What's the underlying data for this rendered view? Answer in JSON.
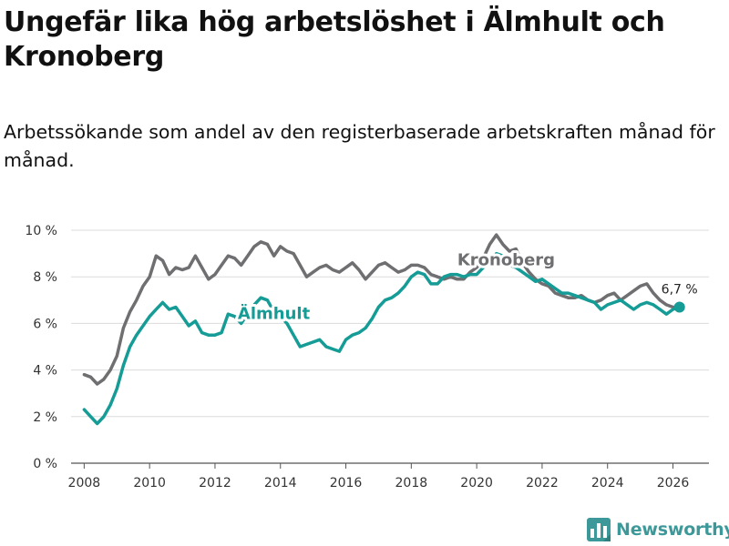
{
  "header": {
    "title": "Ungefär lika hög arbetslöshet i Älmhult och Kronoberg",
    "subtitle": "Arbetssökande som andel av den registerbaserade arbetskraften månad för månad."
  },
  "footer": {
    "brand": "Newsworthy",
    "brand_icon": "bar-chart-logo-icon"
  },
  "chart_data": {
    "type": "line",
    "title": "Ungefär lika hög arbetslöshet i Älmhult och Kronoberg",
    "subtitle": "Arbetssökande som andel av den registerbaserade arbetskraften månad för månad.",
    "xlabel": "",
    "ylabel": "",
    "xlim": [
      2007.6,
      2027.1
    ],
    "ylim": [
      0,
      10
    ],
    "x_ticks": [
      2008,
      2010,
      2012,
      2014,
      2016,
      2018,
      2020,
      2022,
      2024,
      2026
    ],
    "x_tick_labels": [
      "2008",
      "2010",
      "2012",
      "2014",
      "2016",
      "2018",
      "2020",
      "2022",
      "2024",
      "2026"
    ],
    "y_ticks": [
      0,
      2,
      4,
      6,
      8,
      10
    ],
    "y_tick_labels": [
      "0 %",
      "2 %",
      "4 %",
      "6 %",
      "8 %",
      "10 %"
    ],
    "grid": "horizontal",
    "legend": "inline labels",
    "series": [
      {
        "name": "Kronoberg",
        "color": "#6f6f72",
        "points": [
          [
            2008.0,
            3.8
          ],
          [
            2008.2,
            3.7
          ],
          [
            2008.4,
            3.4
          ],
          [
            2008.6,
            3.6
          ],
          [
            2008.8,
            4.0
          ],
          [
            2009.0,
            4.6
          ],
          [
            2009.2,
            5.8
          ],
          [
            2009.4,
            6.5
          ],
          [
            2009.6,
            7.0
          ],
          [
            2009.8,
            7.6
          ],
          [
            2010.0,
            8.0
          ],
          [
            2010.2,
            8.9
          ],
          [
            2010.4,
            8.7
          ],
          [
            2010.6,
            8.1
          ],
          [
            2010.8,
            8.4
          ],
          [
            2011.0,
            8.3
          ],
          [
            2011.2,
            8.4
          ],
          [
            2011.4,
            8.9
          ],
          [
            2011.6,
            8.4
          ],
          [
            2011.8,
            7.9
          ],
          [
            2012.0,
            8.1
          ],
          [
            2012.2,
            8.5
          ],
          [
            2012.4,
            8.9
          ],
          [
            2012.6,
            8.8
          ],
          [
            2012.8,
            8.5
          ],
          [
            2013.0,
            8.9
          ],
          [
            2013.2,
            9.3
          ],
          [
            2013.4,
            9.5
          ],
          [
            2013.6,
            9.4
          ],
          [
            2013.8,
            8.9
          ],
          [
            2014.0,
            9.3
          ],
          [
            2014.2,
            9.1
          ],
          [
            2014.4,
            9.0
          ],
          [
            2014.6,
            8.5
          ],
          [
            2014.8,
            8.0
          ],
          [
            2015.0,
            8.2
          ],
          [
            2015.2,
            8.4
          ],
          [
            2015.4,
            8.5
          ],
          [
            2015.6,
            8.3
          ],
          [
            2015.8,
            8.2
          ],
          [
            2016.0,
            8.4
          ],
          [
            2016.2,
            8.6
          ],
          [
            2016.4,
            8.3
          ],
          [
            2016.6,
            7.9
          ],
          [
            2016.8,
            8.2
          ],
          [
            2017.0,
            8.5
          ],
          [
            2017.2,
            8.6
          ],
          [
            2017.4,
            8.4
          ],
          [
            2017.6,
            8.2
          ],
          [
            2017.8,
            8.3
          ],
          [
            2018.0,
            8.5
          ],
          [
            2018.2,
            8.5
          ],
          [
            2018.4,
            8.4
          ],
          [
            2018.6,
            8.1
          ],
          [
            2018.8,
            8.0
          ],
          [
            2019.0,
            7.9
          ],
          [
            2019.2,
            8.0
          ],
          [
            2019.4,
            7.9
          ],
          [
            2019.6,
            7.9
          ],
          [
            2019.8,
            8.2
          ],
          [
            2020.0,
            8.4
          ],
          [
            2020.2,
            8.8
          ],
          [
            2020.4,
            9.4
          ],
          [
            2020.6,
            9.8
          ],
          [
            2020.8,
            9.4
          ],
          [
            2021.0,
            9.1
          ],
          [
            2021.2,
            9.2
          ],
          [
            2021.4,
            8.6
          ],
          [
            2021.6,
            8.2
          ],
          [
            2021.8,
            7.9
          ],
          [
            2022.0,
            7.7
          ],
          [
            2022.2,
            7.6
          ],
          [
            2022.4,
            7.3
          ],
          [
            2022.6,
            7.2
          ],
          [
            2022.8,
            7.1
          ],
          [
            2023.0,
            7.1
          ],
          [
            2023.2,
            7.2
          ],
          [
            2023.4,
            7.0
          ],
          [
            2023.6,
            6.9
          ],
          [
            2023.8,
            7.0
          ],
          [
            2024.0,
            7.2
          ],
          [
            2024.2,
            7.3
          ],
          [
            2024.4,
            7.0
          ],
          [
            2024.6,
            7.2
          ],
          [
            2024.8,
            7.4
          ],
          [
            2025.0,
            7.6
          ],
          [
            2025.2,
            7.7
          ],
          [
            2025.4,
            7.3
          ],
          [
            2025.6,
            7.0
          ],
          [
            2025.8,
            6.8
          ],
          [
            2026.0,
            6.7
          ],
          [
            2026.2,
            6.7
          ]
        ]
      },
      {
        "name": "Älmhult",
        "color": "#159c96",
        "points": [
          [
            2008.0,
            2.3
          ],
          [
            2008.2,
            2.0
          ],
          [
            2008.4,
            1.7
          ],
          [
            2008.6,
            2.0
          ],
          [
            2008.8,
            2.5
          ],
          [
            2009.0,
            3.2
          ],
          [
            2009.2,
            4.2
          ],
          [
            2009.4,
            5.0
          ],
          [
            2009.6,
            5.5
          ],
          [
            2009.8,
            5.9
          ],
          [
            2010.0,
            6.3
          ],
          [
            2010.2,
            6.6
          ],
          [
            2010.4,
            6.9
          ],
          [
            2010.6,
            6.6
          ],
          [
            2010.8,
            6.7
          ],
          [
            2011.0,
            6.3
          ],
          [
            2011.2,
            5.9
          ],
          [
            2011.4,
            6.1
          ],
          [
            2011.6,
            5.6
          ],
          [
            2011.8,
            5.5
          ],
          [
            2012.0,
            5.5
          ],
          [
            2012.2,
            5.6
          ],
          [
            2012.4,
            6.4
          ],
          [
            2012.6,
            6.3
          ],
          [
            2012.8,
            6.0
          ],
          [
            2013.0,
            6.4
          ],
          [
            2013.2,
            6.8
          ],
          [
            2013.4,
            7.1
          ],
          [
            2013.6,
            7.0
          ],
          [
            2013.8,
            6.5
          ],
          [
            2014.0,
            6.3
          ],
          [
            2014.2,
            6.0
          ],
          [
            2014.4,
            5.5
          ],
          [
            2014.6,
            5.0
          ],
          [
            2014.8,
            5.1
          ],
          [
            2015.0,
            5.2
          ],
          [
            2015.2,
            5.3
          ],
          [
            2015.4,
            5.0
          ],
          [
            2015.6,
            4.9
          ],
          [
            2015.8,
            4.8
          ],
          [
            2016.0,
            5.3
          ],
          [
            2016.2,
            5.5
          ],
          [
            2016.4,
            5.6
          ],
          [
            2016.6,
            5.8
          ],
          [
            2016.8,
            6.2
          ],
          [
            2017.0,
            6.7
          ],
          [
            2017.2,
            7.0
          ],
          [
            2017.4,
            7.1
          ],
          [
            2017.6,
            7.3
          ],
          [
            2017.8,
            7.6
          ],
          [
            2018.0,
            8.0
          ],
          [
            2018.2,
            8.2
          ],
          [
            2018.4,
            8.1
          ],
          [
            2018.6,
            7.7
          ],
          [
            2018.8,
            7.7
          ],
          [
            2019.0,
            8.0
          ],
          [
            2019.2,
            8.1
          ],
          [
            2019.4,
            8.1
          ],
          [
            2019.6,
            8.0
          ],
          [
            2019.8,
            8.1
          ],
          [
            2020.0,
            8.1
          ],
          [
            2020.2,
            8.4
          ],
          [
            2020.4,
            8.6
          ],
          [
            2020.6,
            9.0
          ],
          [
            2020.8,
            8.9
          ],
          [
            2021.0,
            8.5
          ],
          [
            2021.2,
            8.4
          ],
          [
            2021.4,
            8.2
          ],
          [
            2021.6,
            8.0
          ],
          [
            2021.8,
            7.8
          ],
          [
            2022.0,
            7.9
          ],
          [
            2022.2,
            7.7
          ],
          [
            2022.4,
            7.5
          ],
          [
            2022.6,
            7.3
          ],
          [
            2022.8,
            7.3
          ],
          [
            2023.0,
            7.2
          ],
          [
            2023.2,
            7.1
          ],
          [
            2023.4,
            7.0
          ],
          [
            2023.6,
            6.9
          ],
          [
            2023.8,
            6.6
          ],
          [
            2024.0,
            6.8
          ],
          [
            2024.2,
            6.9
          ],
          [
            2024.4,
            7.0
          ],
          [
            2024.6,
            6.8
          ],
          [
            2024.8,
            6.6
          ],
          [
            2025.0,
            6.8
          ],
          [
            2025.2,
            6.9
          ],
          [
            2025.4,
            6.8
          ],
          [
            2025.6,
            6.6
          ],
          [
            2025.8,
            6.4
          ],
          [
            2026.0,
            6.6
          ],
          [
            2026.2,
            6.7
          ]
        ]
      }
    ],
    "annotations": [
      {
        "series": "Kronoberg",
        "text": "Kronoberg",
        "x": 2020.9,
        "y": 8.5
      },
      {
        "series": "Älmhult",
        "text": "Älmhult",
        "x": 2013.8,
        "y": 6.2
      },
      {
        "series": "Älmhult",
        "text": "6,7 %",
        "x": 2026.2,
        "y": 6.7,
        "marker": true
      }
    ]
  }
}
